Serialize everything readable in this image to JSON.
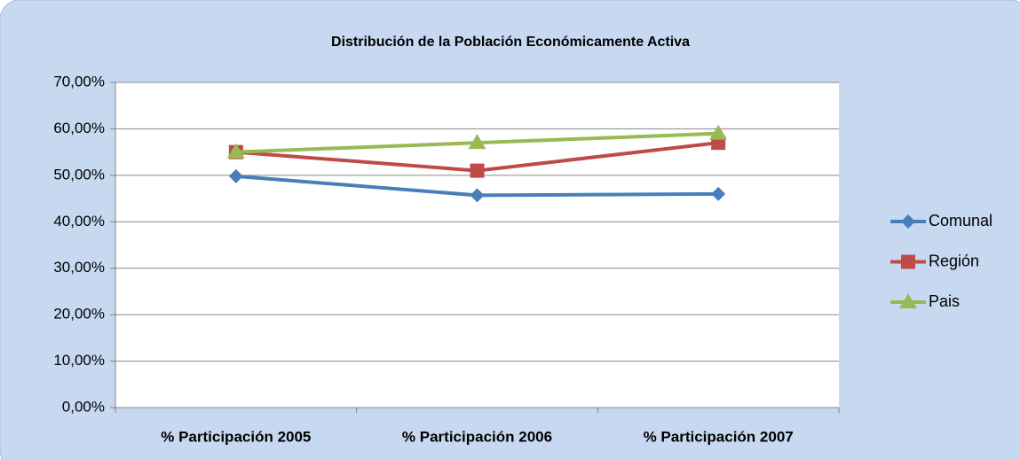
{
  "chart_data": {
    "type": "line",
    "title": "Distribución de la Población Económicamente Activa",
    "categories": [
      "% Participación 2005",
      "% Participación 2006",
      "% Participación 2007"
    ],
    "series": [
      {
        "name": "Comunal",
        "color": "#4a7ebb",
        "marker": "diamond",
        "values": [
          49.8,
          45.7,
          46.0
        ]
      },
      {
        "name": "Región",
        "color": "#be4b48",
        "marker": "square",
        "values": [
          55.0,
          51.0,
          57.0
        ]
      },
      {
        "name": "Pais",
        "color": "#98b954",
        "marker": "triangle",
        "values": [
          55.0,
          57.0,
          59.0
        ]
      }
    ],
    "ylim": [
      0,
      70
    ],
    "yticks": [
      {
        "value": 0,
        "label": "0,00%"
      },
      {
        "value": 10,
        "label": "10,00%"
      },
      {
        "value": 20,
        "label": "20,00%"
      },
      {
        "value": 30,
        "label": "30,00%"
      },
      {
        "value": 40,
        "label": "40,00%"
      },
      {
        "value": 50,
        "label": "50,00%"
      },
      {
        "value": 60,
        "label": "60,00%"
      },
      {
        "value": 70,
        "label": "70,00%"
      }
    ],
    "grid": true,
    "legend": "right"
  }
}
